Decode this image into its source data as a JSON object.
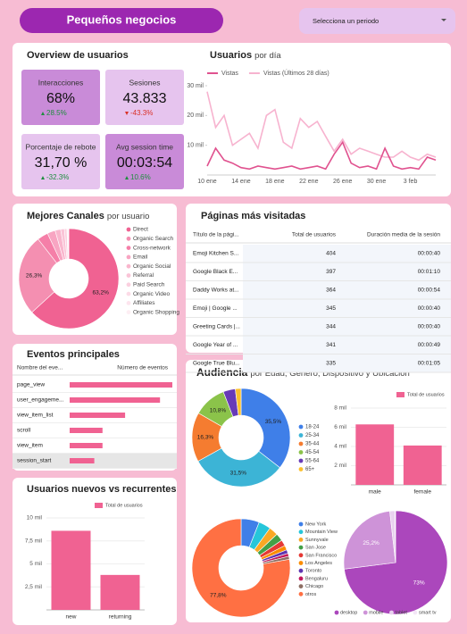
{
  "header": {
    "title": "Pequeños negocios",
    "period_selector": "Selecciona un periodo"
  },
  "panels": {
    "overview": {
      "title": "Overview de usuarios"
    },
    "channels": {
      "title": "Mejores Canales",
      "subtitle": "por usuario"
    },
    "pages": {
      "title": "Páginas más visitadas"
    },
    "events": {
      "title": "Eventos principales"
    },
    "users": {
      "title": "Usuarios nuevos vs recurrentes"
    },
    "audience": {
      "title": "Audiencia",
      "subtitle": "por Edad, Género, Dispositivo y Ubicación"
    }
  },
  "scorecards": [
    {
      "label": "Interacciones",
      "value": "68%",
      "change": "28.5%",
      "trend": "up",
      "color": "#c98bd8"
    },
    {
      "label": "Sesiones",
      "value": "43.833",
      "change": "-43.3%",
      "trend": "down",
      "color": "#e6c4ee"
    },
    {
      "label": "Porcentaje de rebote",
      "value": "31,70 %",
      "change": "-32.3%",
      "trend": "up",
      "color": "#e6c4ee"
    },
    {
      "label": "Avg session time",
      "value": "00:03:54",
      "change": "10.6%",
      "trend": "up",
      "color": "#c98bd8"
    }
  ],
  "tables": [
    {
      "columns": [
        "Título de la pági...",
        "Total de usuarios",
        "Duración media de la sesión"
      ],
      "rows": [
        [
          "Emoji Kitchen S...",
          "404",
          "00:00:40"
        ],
        [
          "Google Black E...",
          "397",
          "00:01:10"
        ],
        [
          "Daddy Works at...",
          "364",
          "00:00:54"
        ],
        [
          "Emoji | Google ...",
          "345",
          "00:00:40"
        ],
        [
          "Greeting Cards |...",
          "344",
          "00:00:40"
        ],
        [
          "Google Year of ...",
          "341",
          "00:00:49"
        ],
        [
          "Google True Blu...",
          "335",
          "00:01:05"
        ]
      ]
    }
  ],
  "chart_data": [
    {
      "type": "line",
      "title": "Usuarios",
      "subtitle": "por día",
      "categories": [
        "10 ene",
        null,
        null,
        null,
        "14 ene",
        null,
        null,
        null,
        "18 ene",
        null,
        null,
        null,
        "22 ene",
        null,
        null,
        null,
        "26 ene",
        null,
        null,
        null,
        "30 ene",
        null,
        null,
        null,
        "3 feb",
        null,
        null,
        null
      ],
      "series": [
        {
          "name": "Vistas",
          "color": "#e0528f",
          "values": [
            3000,
            9000,
            5000,
            4000,
            2500,
            2000,
            3000,
            2500,
            2000,
            2500,
            3000,
            2000,
            2500,
            3000,
            2000,
            7000,
            11000,
            4000,
            2500,
            3000,
            2000,
            9000,
            3000,
            2000,
            2500,
            2000,
            6000,
            5000
          ]
        },
        {
          "name": "Vistas (Últimos 28 días)",
          "color": "#f7b3cf",
          "values": [
            28000,
            16000,
            20000,
            10000,
            12000,
            14000,
            9000,
            20000,
            22000,
            11000,
            9000,
            19000,
            16000,
            18000,
            13000,
            8000,
            12000,
            7000,
            9000,
            8000,
            7000,
            6000,
            6000,
            8000,
            6000,
            5000,
            7000,
            6000
          ]
        }
      ],
      "ylim": [
        0,
        30000
      ],
      "yticks": [
        {
          "value": 10000,
          "label": "10 mil"
        },
        {
          "value": 20000,
          "label": "20 mil"
        },
        {
          "value": 30000,
          "label": "30 mil"
        }
      ]
    },
    {
      "type": "pie",
      "categories": [
        "Direct",
        "Organic Search",
        "Cross-network",
        "Email",
        "Organic Social",
        "Referral",
        "Paid Search",
        "Organic Video",
        "Affiliates",
        "Organic Shopping"
      ],
      "values": [
        63.2,
        26.3,
        3.5,
        2.6,
        1.8,
        1.2,
        0.8,
        0.3,
        0.1,
        0.2
      ],
      "value_labels": [
        "63,2%",
        "26,3%",
        null,
        null,
        null,
        null,
        null,
        null,
        null,
        null
      ],
      "colors": [
        "#f06292",
        "#f48fb1",
        "#f57fa8",
        "#f8a5c2",
        "#f9b6cd",
        "#fac4d7",
        "#fbd0df",
        "#fcdbe7",
        "#fde5ee",
        "#fdeef3"
      ]
    },
    {
      "type": "hbar",
      "column_headers": [
        "Nombre del eve...",
        "Número de eventos"
      ],
      "categories": [
        "page_view",
        "user_engageme...",
        "view_item_list",
        "scroll",
        "view_item",
        "session_start"
      ],
      "values": [
        100,
        88,
        54,
        32,
        32,
        24
      ],
      "xlim": [
        0,
        100
      ],
      "color": "#f06292"
    },
    {
      "type": "bar",
      "categories": [
        "new",
        "returning"
      ],
      "legend": "Total de usuarios",
      "values": [
        8600,
        3800
      ],
      "color": "#f06292",
      "ylim": [
        0,
        10000
      ],
      "yticks": [
        {
          "value": 2500,
          "label": "2,5 mil"
        },
        {
          "value": 5000,
          "label": "5 mil"
        },
        {
          "value": 7500,
          "label": "7,5 mil"
        },
        {
          "value": 10000,
          "label": "10 mil"
        }
      ],
      "grid": true
    },
    {
      "type": "donut",
      "categories": [
        "18-24",
        "25-34",
        "35-44",
        "45-54",
        "55-64",
        "65+"
      ],
      "values": [
        35.5,
        31.5,
        16.3,
        10.8,
        4.0,
        1.9
      ],
      "value_labels": [
        "35,5%",
        "31,5%",
        "16,3%",
        "10,8%",
        null,
        null
      ],
      "colors": [
        "#3f7fe8",
        "#3cb4d6",
        "#f57c30",
        "#8bc34a",
        "#673ab7",
        "#fbc02d"
      ]
    },
    {
      "type": "bar",
      "categories": [
        "male",
        "female"
      ],
      "legend": "Total de usuarios",
      "values": [
        6300,
        4100
      ],
      "color": "#f06292",
      "ylim": [
        0,
        8000
      ],
      "yticks": [
        {
          "value": 2000,
          "label": "2 mil"
        },
        {
          "value": 4000,
          "label": "4 mil"
        },
        {
          "value": 6000,
          "label": "6 mil"
        },
        {
          "value": 8000,
          "label": "8 mil"
        }
      ],
      "grid": true
    },
    {
      "type": "donut",
      "categories": [
        "New York",
        "Mountain View",
        "Sunnyvale",
        "San Jose",
        "San Francisco",
        "Los Angeles",
        "Toronto",
        "Bengaluru",
        "Chicago",
        "otros"
      ],
      "values": [
        6,
        4,
        3,
        2.5,
        2,
        1.5,
        1.2,
        1,
        1,
        77.8
      ],
      "value_labels": [
        null,
        null,
        null,
        null,
        null,
        null,
        null,
        null,
        null,
        "77,8%"
      ],
      "colors": [
        "#3f7fe8",
        "#26c6da",
        "#f9a825",
        "#43a047",
        "#e53935",
        "#fb8c00",
        "#5e35b1",
        "#c2185b",
        "#8d6e63",
        "#ff7043"
      ]
    },
    {
      "type": "pie",
      "categories": [
        "desktop",
        "mobile",
        "tablet",
        "smart tv"
      ],
      "values": [
        73,
        25.2,
        1.6,
        0.2
      ],
      "value_labels": [
        "73%",
        "25,2%",
        null,
        null
      ],
      "colors": [
        "#ab47bc",
        "#ce93d8",
        "#e9d2ef",
        "#f3e6f6"
      ]
    }
  ]
}
